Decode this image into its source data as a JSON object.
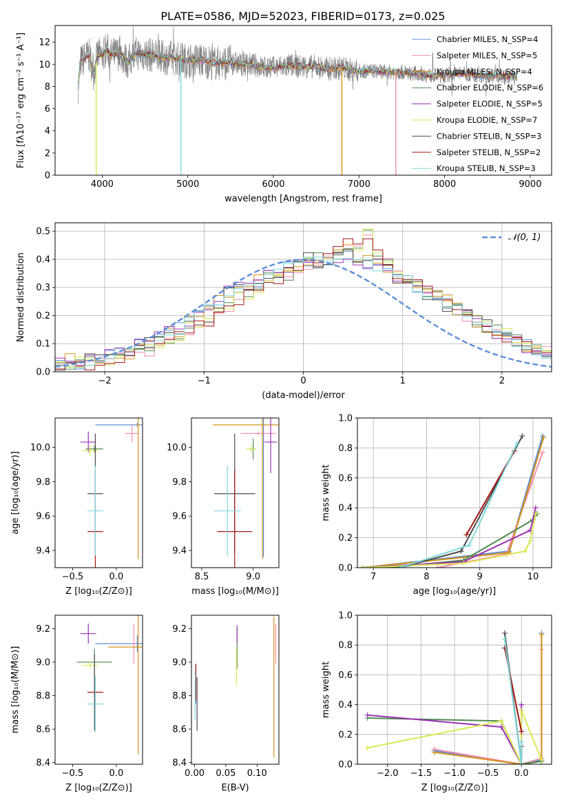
{
  "figure_title": "PLATE=0586, MJD=52023, FIBERID=0173, z=0.025",
  "series_colors": [
    "#5b8fd9",
    "#f28cae",
    "#d59216",
    "#4e8a4e",
    "#9b30b4",
    "#d9e84e",
    "#4a4a4a",
    "#a31414",
    "#7fd8dc"
  ],
  "chart_data": [
    {
      "id": "spectrum",
      "type": "line",
      "title": "PLATE=0586, MJD=52023, FIBERID=0173, z=0.025",
      "xlabel": "wavelength [Angstrom, rest frame]",
      "ylabel": "Flux [fλ10⁻¹⁷ erg cm⁻² s⁻¹ A⁻¹]",
      "xlim": [
        3450,
        9250
      ],
      "ylim": [
        0,
        13.5
      ],
      "xticks": [
        4000,
        5000,
        6000,
        7000,
        8000,
        9000
      ],
      "yticks": [
        0,
        2,
        4,
        6,
        8,
        10,
        12
      ],
      "grid": false,
      "legend": "top-right",
      "data_color": "#808080",
      "series": [
        {
          "name": "Chabrier MILES, N_SSP=4",
          "color": "#5b8fd9"
        },
        {
          "name": "Salpeter MILES, N_SSP=5",
          "color": "#f28cae"
        },
        {
          "name": "Kroupa MILES, N_SSP=4",
          "color": "#d59216"
        },
        {
          "name": "Chabrier ELODIE, N_SSP=6",
          "color": "#4e8a4e"
        },
        {
          "name": "Salpeter ELODIE, N_SSP=5",
          "color": "#9b30b4"
        },
        {
          "name": "Kroupa ELODIE, N_SSP=7",
          "color": "#d9e84e"
        },
        {
          "name": "Chabrier STELIB, N_SSP=3",
          "color": "#4a4a4a"
        },
        {
          "name": "Salpeter STELIB, N_SSP=2",
          "color": "#a31414"
        },
        {
          "name": "Kroupa STELIB, N_SSP=3",
          "color": "#7fd8dc"
        }
      ],
      "model_shape": {
        "x": [
          3720,
          3750,
          3800,
          3850,
          3900,
          3950,
          4000,
          4050,
          4100,
          4150,
          4200,
          4300,
          4400,
          4500,
          4600,
          4700,
          4800,
          4900,
          5000,
          5100,
          5200,
          5300,
          5400,
          5500,
          5600,
          5700,
          5800,
          5900,
          6000,
          6100,
          6200,
          6300,
          6400,
          6500,
          6600,
          6700,
          6800,
          6900,
          7000,
          7100,
          7200,
          7300,
          7400,
          7500,
          7600,
          7700,
          7800,
          7900,
          8000,
          8100,
          8200,
          8300,
          8400,
          8500,
          8600,
          8700,
          8800,
          8850
        ],
        "y": [
          8.0,
          10.2,
          10.6,
          10.8,
          9.2,
          10.9,
          10.7,
          11.4,
          10.8,
          10.9,
          11.0,
          10.2,
          11.0,
          10.9,
          10.8,
          10.6,
          10.6,
          10.5,
          10.3,
          10.4,
          10.3,
          10.1,
          10.1,
          10.2,
          10.0,
          10.0,
          9.9,
          9.7,
          9.7,
          9.8,
          9.9,
          9.8,
          9.8,
          9.8,
          9.6,
          9.6,
          9.7,
          9.5,
          9.4,
          9.4,
          9.4,
          9.3,
          9.3,
          9.3,
          9.2,
          9.2,
          9.0,
          9.0,
          9.0,
          9.1,
          9.2,
          9.1,
          9.0,
          9.0,
          9.0,
          8.9,
          8.9,
          8.8
        ]
      },
      "dips": [
        {
          "x": 3930,
          "y": 0,
          "series": "Kroupa ELODIE, N_SSP=7"
        },
        {
          "x": 4920,
          "y": 0,
          "series": "Kroupa STELIB, N_SSP=3"
        },
        {
          "x": 6800,
          "y": 0,
          "series": "Kroupa MILES, N_SSP=4"
        },
        {
          "x": 7430,
          "y": 0,
          "series": "Salpeter MILES, N_SSP=5"
        }
      ]
    },
    {
      "id": "residuals",
      "type": "histogram",
      "xlabel": "(data-model)/error",
      "ylabel": "Normed distribution",
      "xlim": [
        -2.5,
        2.5
      ],
      "ylim": [
        0,
        0.53
      ],
      "xticks": [
        -2,
        -1,
        0,
        1,
        2
      ],
      "yticks": [
        0.0,
        0.1,
        0.2,
        0.3,
        0.4,
        0.5
      ],
      "grid": true,
      "legend": "top-right",
      "reference": {
        "name": "𝒩(0, 1)",
        "mean": 0,
        "sigma": 1,
        "color": "#5b8fd9"
      },
      "bins": {
        "start": -2.5,
        "width": 0.1
      },
      "series_values": [
        [
          0.03,
          0.04,
          0.03,
          0.04,
          0.05,
          0.06,
          0.06,
          0.08,
          0.1,
          0.1,
          0.12,
          0.14,
          0.15,
          0.18,
          0.2,
          0.22,
          0.25,
          0.28,
          0.3,
          0.3,
          0.32,
          0.34,
          0.36,
          0.37,
          0.38,
          0.4,
          0.39,
          0.4,
          0.41,
          0.42,
          0.4,
          0.39,
          0.38,
          0.36,
          0.34,
          0.32,
          0.3,
          0.28,
          0.26,
          0.24,
          0.22,
          0.2,
          0.18,
          0.16,
          0.14,
          0.12,
          0.1,
          0.09,
          0.08,
          0.06
        ],
        [
          0.02,
          0.03,
          0.03,
          0.03,
          0.04,
          0.05,
          0.05,
          0.07,
          0.07,
          0.08,
          0.1,
          0.11,
          0.13,
          0.15,
          0.16,
          0.18,
          0.21,
          0.23,
          0.26,
          0.27,
          0.3,
          0.33,
          0.33,
          0.35,
          0.37,
          0.38,
          0.4,
          0.41,
          0.44,
          0.45,
          0.43,
          0.49,
          0.41,
          0.38,
          0.35,
          0.33,
          0.31,
          0.29,
          0.27,
          0.25,
          0.22,
          0.2,
          0.18,
          0.16,
          0.15,
          0.13,
          0.12,
          0.1,
          0.08,
          0.07
        ]
      ]
    },
    {
      "id": "age_vs_Z",
      "type": "errorbar",
      "xlabel": "Z [log₁₀(Z/Z⊙)]",
      "ylabel": "age  [log₁₀(age/yr)]",
      "xlim": [
        -0.7,
        0.3
      ],
      "ylim": [
        9.3,
        10.17
      ],
      "xticks": [
        -0.5,
        0.0
      ],
      "yticks": [
        9.4,
        9.6,
        9.8,
        10.0
      ],
      "points": [
        {
          "x": 0.24,
          "y": 10.13,
          "xerr": 0.48,
          "yerr": 0.01,
          "series": "Chabrier MILES, N_SSP=4"
        },
        {
          "x": 0.18,
          "y": 10.08,
          "xerr": 0.08,
          "yerr": 0.05,
          "series": "Salpeter MILES, N_SSP=5"
        },
        {
          "x": 0.25,
          "y": 10.13,
          "xerr": 0.02,
          "yerr": 0.78,
          "series": "Kroupa MILES, N_SSP=4"
        },
        {
          "x": -0.25,
          "y": 9.99,
          "xerr": 0.1,
          "yerr": 0.02,
          "series": "Chabrier ELODIE, N_SSP=6"
        },
        {
          "x": -0.32,
          "y": 10.03,
          "xerr": 0.09,
          "yerr": 0.06,
          "series": "Salpeter ELODIE, N_SSP=5"
        },
        {
          "x": -0.3,
          "y": 9.98,
          "xerr": 0.09,
          "yerr": 0.03,
          "series": "Kroupa ELODIE, N_SSP=7"
        },
        {
          "x": -0.24,
          "y": 9.73,
          "xerr": 0.09,
          "yerr": 0.35,
          "series": "Chabrier STELIB, N_SSP=3"
        },
        {
          "x": -0.24,
          "y": 9.51,
          "xerr": 0.09,
          "yerr": 0.36,
          "series": "Salpeter STELIB, N_SSP=2"
        },
        {
          "x": -0.24,
          "y": 9.63,
          "xerr": 0.09,
          "yerr": 0.26,
          "series": "Kroupa STELIB, N_SSP=3"
        }
      ]
    },
    {
      "id": "age_vs_mass",
      "type": "errorbar",
      "xlabel": "mass [log₁₀(M/M⊙)]",
      "ylabel": "",
      "xlim": [
        8.4,
        9.25
      ],
      "ylim": [
        9.3,
        10.17
      ],
      "xticks": [
        8.5,
        9.0
      ],
      "yticks": [
        9.4,
        9.6,
        9.8,
        10.0
      ],
      "points": [
        {
          "x": 9.1,
          "y": 10.13,
          "xerr": 0.0,
          "yerr": 0.77,
          "series": "Chabrier MILES, N_SSP=4"
        },
        {
          "x": 9.05,
          "y": 10.08,
          "xerr": 0.17,
          "yerr": 0.01,
          "series": "Salpeter MILES, N_SSP=5"
        },
        {
          "x": 9.09,
          "y": 10.13,
          "xerr": 0.48,
          "yerr": 0.78,
          "series": "Kroupa MILES, N_SSP=4"
        },
        {
          "x": 9.0,
          "y": 9.99,
          "xerr": 0.03,
          "yerr": 0.06,
          "series": "Chabrier ELODIE, N_SSP=6"
        },
        {
          "x": 9.17,
          "y": 10.03,
          "xerr": 0.06,
          "yerr": 0.18,
          "series": "Salpeter ELODIE, N_SSP=5"
        },
        {
          "x": 8.98,
          "y": 9.99,
          "xerr": 0.05,
          "yerr": 0.02,
          "series": "Kroupa ELODIE, N_SSP=7"
        },
        {
          "x": 8.82,
          "y": 9.73,
          "xerr": 0.2,
          "yerr": 0.35,
          "series": "Chabrier STELIB, N_SSP=3"
        },
        {
          "x": 8.82,
          "y": 9.51,
          "xerr": 0.17,
          "yerr": 0.36,
          "series": "Salpeter STELIB, N_SSP=2"
        },
        {
          "x": 8.75,
          "y": 9.63,
          "xerr": 0.13,
          "yerr": 0.26,
          "series": "Kroupa STELIB, N_SSP=3"
        }
      ]
    },
    {
      "id": "weight_vs_age",
      "type": "line",
      "xlabel": "age  [log₁₀(age/yr)]",
      "ylabel": "mass weight",
      "xlim": [
        6.7,
        10.35
      ],
      "ylim": [
        0,
        1.0
      ],
      "xticks": [
        7,
        8,
        9,
        10
      ],
      "yticks": [
        0.0,
        0.2,
        0.4,
        0.6,
        0.8,
        1.0
      ],
      "grid": true,
      "series": [
        {
          "name": "Chabrier MILES, N_SSP=4",
          "x": [
            6.8,
            9.55,
            10.18
          ],
          "y": [
            0.0,
            0.11,
            0.88
          ]
        },
        {
          "name": "Salpeter MILES, N_SSP=5",
          "x": [
            8.2,
            9.5,
            10.18
          ],
          "y": [
            0.0,
            0.09,
            0.77
          ]
        },
        {
          "name": "Kroupa MILES, N_SSP=4",
          "x": [
            6.8,
            9.55,
            10.2
          ],
          "y": [
            0.0,
            0.1,
            0.87
          ]
        },
        {
          "name": "Chabrier ELODIE, N_SSP=6",
          "x": [
            7.3,
            8.7,
            10.0,
            10.08
          ],
          "y": [
            0.0,
            0.05,
            0.32,
            0.36
          ]
        },
        {
          "name": "Salpeter ELODIE, N_SSP=5",
          "x": [
            6.8,
            8.7,
            9.95,
            10.05
          ],
          "y": [
            0.0,
            0.04,
            0.25,
            0.4
          ]
        },
        {
          "name": "Kroupa ELODIE, N_SSP=7",
          "x": [
            6.8,
            8.7,
            9.85,
            9.95,
            10.05
          ],
          "y": [
            0.0,
            0.03,
            0.11,
            0.18,
            0.36
          ]
        },
        {
          "name": "Chabrier STELIB, N_SSP=3",
          "x": [
            7.5,
            8.65,
            9.8
          ],
          "y": [
            0.0,
            0.11,
            0.88
          ]
        },
        {
          "name": "Salpeter STELIB, N_SSP=2",
          "x": [
            8.75,
            9.65
          ],
          "y": [
            0.22,
            0.78
          ]
        },
        {
          "name": "Kroupa STELIB, N_SSP=3",
          "x": [
            7.5,
            8.8,
            9.7
          ],
          "y": [
            0.0,
            0.15,
            0.83
          ]
        }
      ]
    },
    {
      "id": "mass_vs_Z",
      "type": "errorbar",
      "xlabel": "Z [log₁₀(Z/Z⊙)]",
      "ylabel": "mass [log₁₀(M/M⊙)]",
      "xlim": [
        -0.7,
        0.3
      ],
      "ylim": [
        8.39,
        9.28
      ],
      "xticks": [
        -0.5,
        0.0
      ],
      "yticks": [
        8.4,
        8.6,
        8.8,
        9.0,
        9.2
      ],
      "points": [
        {
          "x": 0.24,
          "y": 9.11,
          "xerr": 0.48,
          "yerr": 0.05,
          "series": "Chabrier MILES, N_SSP=4"
        },
        {
          "x": 0.2,
          "y": 9.11,
          "xerr": 0.02,
          "yerr": 0.12,
          "series": "Salpeter MILES, N_SSP=5"
        },
        {
          "x": 0.25,
          "y": 9.09,
          "xerr": 0.34,
          "yerr": 0.64,
          "series": "Kroupa MILES, N_SSP=4"
        },
        {
          "x": -0.25,
          "y": 9.0,
          "xerr": 0.2,
          "yerr": 0.08,
          "series": "Chabrier ELODIE, N_SSP=6"
        },
        {
          "x": -0.32,
          "y": 9.17,
          "xerr": 0.09,
          "yerr": 0.06,
          "series": "Salpeter ELODIE, N_SSP=5"
        },
        {
          "x": -0.3,
          "y": 8.98,
          "xerr": 0.09,
          "yerr": 0.02,
          "series": "Kroupa ELODIE, N_SSP=7"
        },
        {
          "x": -0.25,
          "y": 8.82,
          "xerr": 0.01,
          "yerr": 0.23,
          "series": "Chabrier STELIB, N_SSP=3"
        },
        {
          "x": -0.24,
          "y": 8.82,
          "xerr": 0.09,
          "yerr": 0.08,
          "series": "Salpeter STELIB, N_SSP=2"
        },
        {
          "x": -0.24,
          "y": 8.75,
          "xerr": 0.09,
          "yerr": 0.17,
          "series": "Kroupa STELIB, N_SSP=3"
        }
      ]
    },
    {
      "id": "mass_vs_EBV",
      "type": "errorbar",
      "xlabel": "E(B-V)",
      "ylabel": "",
      "xlim": [
        -0.005,
        0.135
      ],
      "ylim": [
        8.39,
        9.28
      ],
      "xticks": [
        0.0,
        0.05,
        0.1
      ],
      "yticks": [
        8.4,
        8.6,
        8.8,
        9.0,
        9.2
      ],
      "points": [
        {
          "x": 0.002,
          "y": 8.87,
          "xerr": 0,
          "yerr": 0.12,
          "series": "Chabrier MILES, N_SSP=4"
        },
        {
          "x": 0.13,
          "y": 9.11,
          "xerr": 0,
          "yerr": 0.12,
          "series": "Salpeter MILES, N_SSP=5"
        },
        {
          "x": 0.127,
          "y": 8.85,
          "xerr": 0,
          "yerr": 0.42,
          "series": "Kroupa MILES, N_SSP=4"
        },
        {
          "x": 0.068,
          "y": 9.08,
          "xerr": 0,
          "yerr": 0.12,
          "series": "Chabrier ELODIE, N_SSP=6"
        },
        {
          "x": 0.068,
          "y": 9.17,
          "xerr": 0,
          "yerr": 0.05,
          "series": "Salpeter ELODIE, N_SSP=5"
        },
        {
          "x": 0.067,
          "y": 8.97,
          "xerr": 0,
          "yerr": 0.11,
          "series": "Kroupa ELODIE, N_SSP=7"
        },
        {
          "x": 0.004,
          "y": 8.75,
          "xerr": 0,
          "yerr": 0.16,
          "series": "Chabrier STELIB, N_SSP=3"
        },
        {
          "x": 0.002,
          "y": 8.88,
          "xerr": 0,
          "yerr": 0.11,
          "series": "Salpeter STELIB, N_SSP=2"
        },
        {
          "x": 0.001,
          "y": 8.8,
          "xerr": 0,
          "yerr": 0.14,
          "series": "Kroupa STELIB, N_SSP=3"
        }
      ]
    },
    {
      "id": "weight_vs_Z",
      "type": "line",
      "xlabel": "Z [log₁₀(Z/Z⊙)]",
      "ylabel": "mass weight",
      "xlim": [
        -2.45,
        0.45
      ],
      "ylim": [
        0,
        1.0
      ],
      "xticks": [
        -2.0,
        -1.5,
        -1.0,
        -0.5,
        0.0
      ],
      "yticks": [
        0.0,
        0.2,
        0.4,
        0.6,
        0.8,
        1.0
      ],
      "grid": true,
      "series": [
        {
          "name": "Chabrier MILES, N_SSP=4",
          "x": [
            -1.3,
            0.0,
            0.3,
            0.3
          ],
          "y": [
            0.09,
            0.0,
            0.03,
            0.88
          ]
        },
        {
          "name": "Salpeter MILES, N_SSP=5",
          "x": [
            -1.3,
            0.0,
            0.3,
            0.3
          ],
          "y": [
            0.1,
            0.0,
            0.04,
            0.77
          ]
        },
        {
          "name": "Kroupa MILES, N_SSP=4",
          "x": [
            -1.3,
            0.0,
            0.3,
            0.3
          ],
          "y": [
            0.08,
            0.0,
            0.02,
            0.87
          ]
        },
        {
          "name": "Chabrier ELODIE, N_SSP=6",
          "x": [
            -2.3,
            -0.3,
            0.0,
            0.3
          ],
          "y": [
            0.31,
            0.29,
            0.0,
            0.02
          ]
        },
        {
          "name": "Salpeter ELODIE, N_SSP=5",
          "x": [
            -2.3,
            -0.3,
            0.0,
            0.0
          ],
          "y": [
            0.33,
            0.25,
            0.0,
            0.4
          ]
        },
        {
          "name": "Kroupa ELODIE, N_SSP=7",
          "x": [
            -2.3,
            -0.3,
            0.0,
            0.0,
            0.3
          ],
          "y": [
            0.11,
            0.29,
            0.0,
            0.36,
            0.03
          ]
        },
        {
          "name": "Chabrier STELIB, N_SSP=3",
          "x": [
            -0.25,
            0.0,
            0.0
          ],
          "y": [
            0.88,
            0.0,
            0.12
          ]
        },
        {
          "name": "Salpeter STELIB, N_SSP=2",
          "x": [
            -0.25,
            0.0
          ],
          "y": [
            0.78,
            0.22
          ]
        },
        {
          "name": "Kroupa STELIB, N_SSP=3",
          "x": [
            -0.25,
            0.0,
            0.0
          ],
          "y": [
            0.84,
            0.0,
            0.15
          ]
        }
      ]
    }
  ]
}
